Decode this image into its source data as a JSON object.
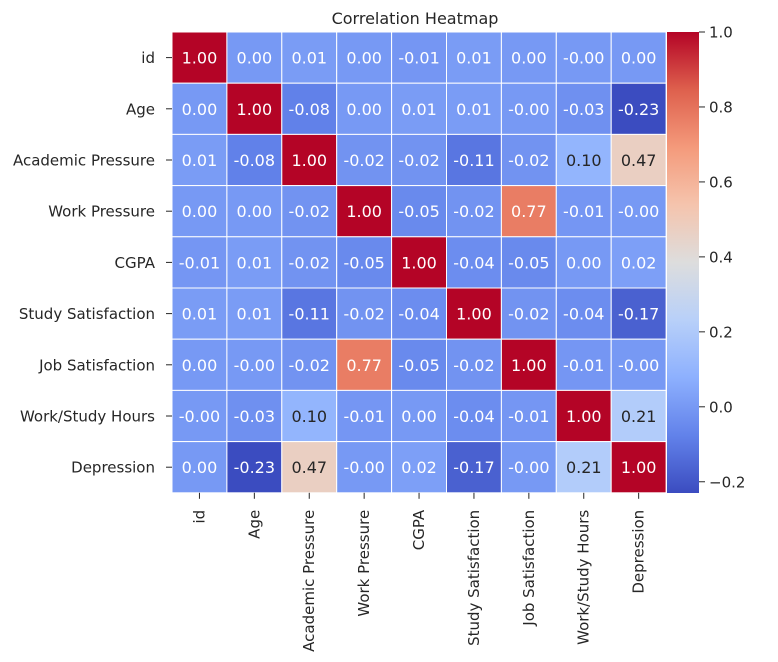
{
  "chart_data": {
    "type": "heatmap",
    "title": "Correlation Heatmap",
    "colormap": "coolwarm",
    "value_range": [
      -0.23,
      1.0
    ],
    "labels": [
      "id",
      "Age",
      "Academic Pressure",
      "Work Pressure",
      "CGPA",
      "Study Satisfaction",
      "Job Satisfaction",
      "Work/Study Hours",
      "Depression"
    ],
    "matrix": [
      [
        1.0,
        0.0,
        0.01,
        0.0,
        -0.01,
        0.01,
        0.0,
        -0.0,
        0.0
      ],
      [
        0.0,
        1.0,
        -0.08,
        0.0,
        0.01,
        0.01,
        -0.0,
        -0.03,
        -0.23
      ],
      [
        0.01,
        -0.08,
        1.0,
        -0.02,
        -0.02,
        -0.11,
        -0.02,
        0.1,
        0.47
      ],
      [
        0.0,
        0.0,
        -0.02,
        1.0,
        -0.05,
        -0.02,
        0.77,
        -0.01,
        -0.0
      ],
      [
        -0.01,
        0.01,
        -0.02,
        -0.05,
        1.0,
        -0.04,
        -0.05,
        0.0,
        0.02
      ],
      [
        0.01,
        0.01,
        -0.11,
        -0.02,
        -0.04,
        1.0,
        -0.02,
        -0.04,
        -0.17
      ],
      [
        0.0,
        -0.0,
        -0.02,
        0.77,
        -0.05,
        -0.02,
        1.0,
        -0.01,
        -0.0
      ],
      [
        -0.0,
        -0.03,
        0.1,
        -0.01,
        0.0,
        -0.04,
        -0.01,
        1.0,
        0.21
      ],
      [
        0.0,
        -0.23,
        0.47,
        -0.0,
        0.02,
        -0.17,
        -0.0,
        0.21,
        1.0
      ]
    ],
    "annotations": [
      [
        "1.00",
        "0.00",
        "0.01",
        "0.00",
        "-0.01",
        "0.01",
        "0.00",
        "-0.00",
        "0.00"
      ],
      [
        "0.00",
        "1.00",
        "-0.08",
        "0.00",
        "0.01",
        "0.01",
        "-0.00",
        "-0.03",
        "-0.23"
      ],
      [
        "0.01",
        "-0.08",
        "1.00",
        "-0.02",
        "-0.02",
        "-0.11",
        "-0.02",
        "0.10",
        "0.47"
      ],
      [
        "0.00",
        "0.00",
        "-0.02",
        "1.00",
        "-0.05",
        "-0.02",
        "0.77",
        "-0.01",
        "-0.00"
      ],
      [
        "-0.01",
        "0.01",
        "-0.02",
        "-0.05",
        "1.00",
        "-0.04",
        "-0.05",
        "0.00",
        "0.02"
      ],
      [
        "0.01",
        "0.01",
        "-0.11",
        "-0.02",
        "-0.04",
        "1.00",
        "-0.02",
        "-0.04",
        "-0.17"
      ],
      [
        "0.00",
        "-0.00",
        "-0.02",
        "0.77",
        "-0.05",
        "-0.02",
        "1.00",
        "-0.01",
        "-0.00"
      ],
      [
        "-0.00",
        "-0.03",
        "0.10",
        "-0.01",
        "0.00",
        "-0.04",
        "-0.01",
        "1.00",
        "0.21"
      ],
      [
        "0.00",
        "-0.23",
        "0.47",
        "-0.00",
        "0.02",
        "-0.17",
        "-0.00",
        "0.21",
        "1.00"
      ]
    ],
    "colorbar": {
      "ticks": [
        -0.2,
        0.0,
        0.2,
        0.4,
        0.6,
        0.8,
        1.0
      ],
      "tick_labels": [
        "−0.2",
        "0.0",
        "0.2",
        "0.4",
        "0.6",
        "0.8",
        "1.0"
      ]
    },
    "xlabel": "",
    "ylabel": ""
  },
  "colors": {
    "cell_border": "#ffffff",
    "text_dark": "#262626",
    "text_light": "#ffffff",
    "axis_text": "#262626",
    "background": "#ffffff"
  }
}
